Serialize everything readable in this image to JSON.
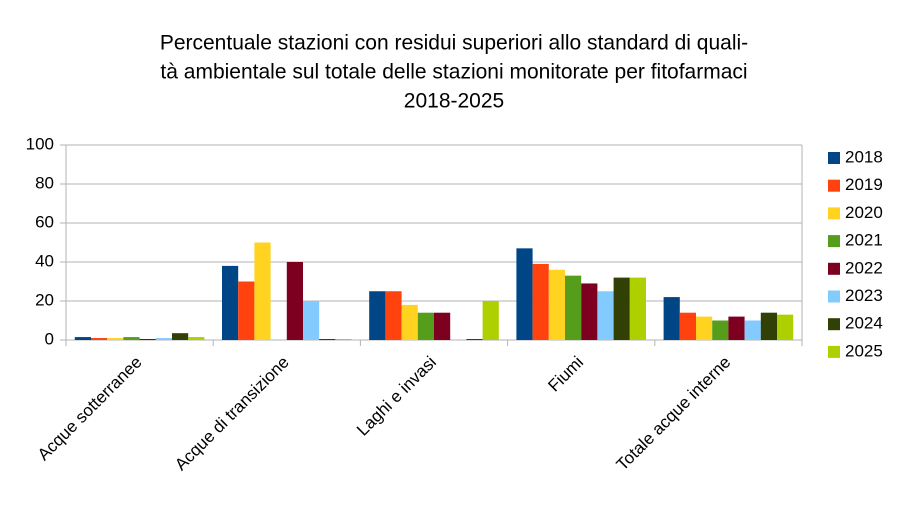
{
  "chart_data": {
    "type": "bar",
    "title": [
      "Percentuale stazioni con residui superiori allo standard di quali-",
      "tà ambientale sul totale delle stazioni monitorate per fitofarmaci",
      "2018-2025"
    ],
    "categories": [
      "Acque sotterranee",
      "Acque di transizione",
      "Laghi e invasi",
      "Fiumi",
      "Totale acque interne"
    ],
    "series": [
      {
        "name": "2018",
        "color": "#004586",
        "values": [
          1.5,
          38,
          25,
          47,
          22
        ]
      },
      {
        "name": "2019",
        "color": "#ff420e",
        "values": [
          1,
          30,
          25,
          39,
          14
        ]
      },
      {
        "name": "2020",
        "color": "#ffd320",
        "values": [
          1,
          50,
          18,
          36,
          12
        ]
      },
      {
        "name": "2021",
        "color": "#579d1c",
        "values": [
          1.5,
          0,
          14,
          33,
          10
        ]
      },
      {
        "name": "2022",
        "color": "#7e0021",
        "values": [
          0.5,
          40,
          14,
          29,
          12
        ]
      },
      {
        "name": "2023",
        "color": "#83caff",
        "values": [
          1,
          20,
          0,
          25,
          10
        ]
      },
      {
        "name": "2024",
        "color": "#314004",
        "values": [
          3.5,
          0.5,
          0.5,
          32,
          14
        ]
      },
      {
        "name": "2025",
        "color": "#aecf00",
        "values": [
          1.5,
          0.5,
          20,
          32,
          13
        ]
      }
    ],
    "ylim": [
      0,
      100
    ],
    "yticks": [
      0,
      20,
      40,
      60,
      80,
      100
    ],
    "grid": true,
    "legend": "right"
  }
}
